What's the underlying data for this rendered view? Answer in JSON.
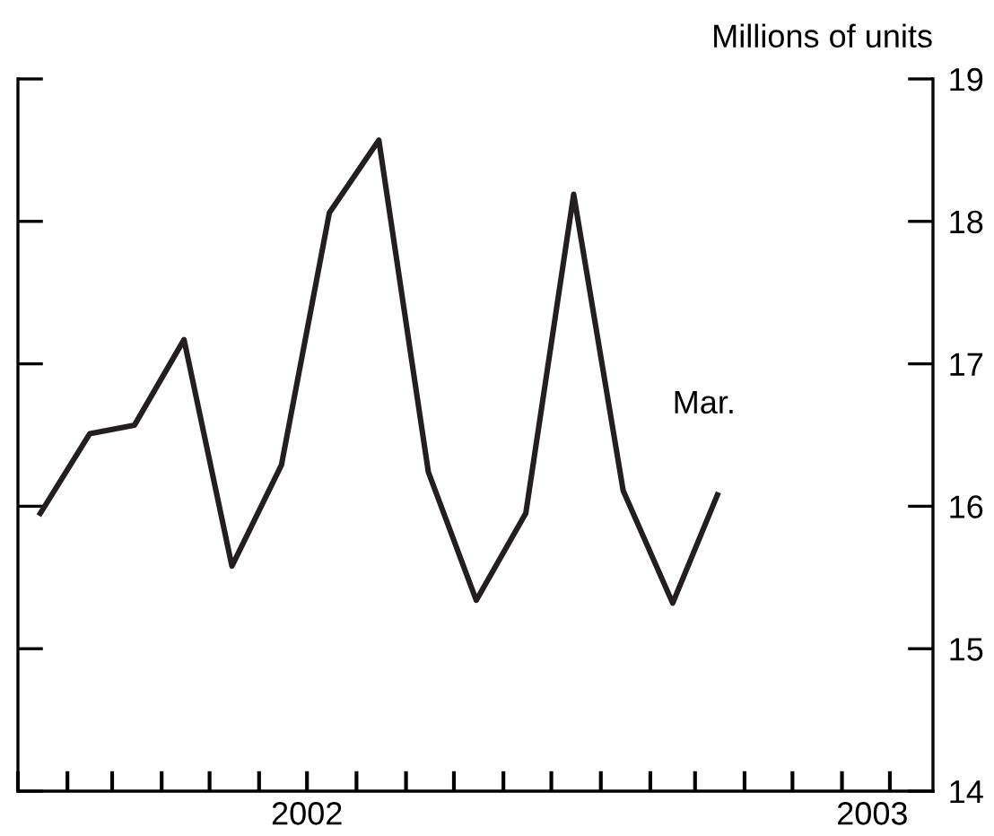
{
  "chart_data": {
    "type": "line",
    "ylabel": "Millions of units",
    "x": [
      "2002-01-15",
      "2002-02-15",
      "2002-03-15",
      "2002-04-15",
      "2002-05-15",
      "2002-06-15",
      "2002-07-15",
      "2002-08-15",
      "2002-09-15",
      "2002-10-15",
      "2002-11-15",
      "2002-12-15",
      "2003-01-15",
      "2003-02-15",
      "2003-03-15"
    ],
    "series": [
      {
        "color": "#231f20",
        "values": [
          15.95,
          16.51,
          16.57,
          17.17,
          15.58,
          16.29,
          18.06,
          18.57,
          16.24,
          15.34,
          15.95,
          18.19,
          16.11,
          15.32,
          16.08
        ]
      }
    ],
    "annotations": [
      {
        "text": "Mar.",
        "x": "2003-03-15",
        "y": 16.08
      }
    ],
    "ylim": [
      14,
      19
    ],
    "yticks": [
      14,
      15,
      16,
      17,
      18,
      19
    ],
    "xlim": [
      "2002-01-01",
      "2003-07-28"
    ],
    "xticks": [
      {
        "value": "2002-07-01",
        "label": "2002"
      },
      {
        "value": "2003-06-20",
        "label": "2003"
      },
      {
        "value": "2002-01-01",
        "label": null
      },
      {
        "value": "2002-02-01",
        "label": null
      },
      {
        "value": "2002-03-01",
        "label": null
      },
      {
        "value": "2002-04-01",
        "label": null
      },
      {
        "value": "2002-05-01",
        "label": null
      },
      {
        "value": "2002-06-01",
        "label": null
      },
      {
        "value": "2002-07-01",
        "label": null
      },
      {
        "value": "2002-08-01",
        "label": null
      },
      {
        "value": "2002-09-01",
        "label": null
      },
      {
        "value": "2002-10-01",
        "label": null
      },
      {
        "value": "2002-11-01",
        "label": null
      },
      {
        "value": "2002-12-01",
        "label": null
      },
      {
        "value": "2003-01-01",
        "label": null
      },
      {
        "value": "2003-02-01",
        "label": null
      },
      {
        "value": "2003-03-01",
        "label": null
      },
      {
        "value": "2003-04-01",
        "label": null
      },
      {
        "value": "2003-05-01",
        "label": null
      },
      {
        "value": "2003-06-01",
        "label": null
      },
      {
        "value": "2003-07-01",
        "label": null
      }
    ],
    "grid": false,
    "legend": false,
    "marker": "none",
    "line_style": "solid"
  }
}
